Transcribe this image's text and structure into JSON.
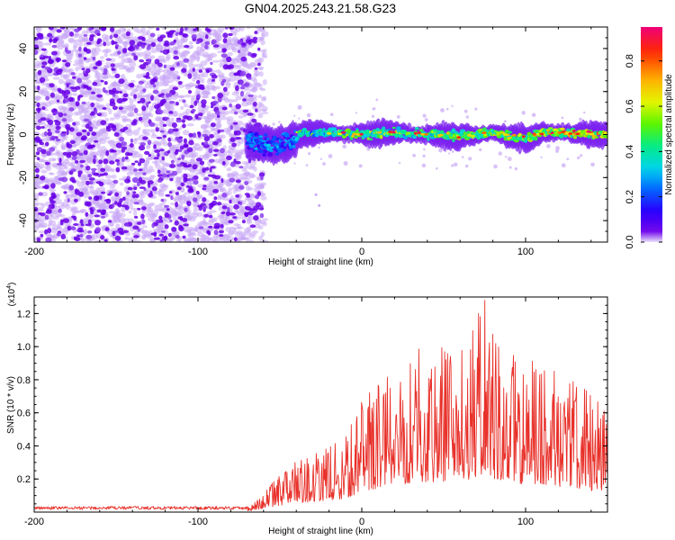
{
  "title": "GN04.2025.243.21.58.G23",
  "colors": {
    "snr_line": "#e8312a",
    "background": "#ffffff",
    "axis": "#000000",
    "scatter_core": "#6a00e8",
    "scatter_halo": "#c9a8f5"
  },
  "chart_data": [
    {
      "type": "heatmap",
      "name": "spectrogram",
      "xlabel": "Height of straight line (km)",
      "ylabel": "Frequency (Hz)",
      "xlim": [
        -200,
        150
      ],
      "ylim": [
        -50,
        50
      ],
      "xticks": [
        -200,
        -100,
        0,
        100
      ],
      "xtick_labels": [
        "-200",
        "-100",
        "0",
        "100"
      ],
      "yticks": [
        -40,
        -20,
        0,
        20,
        40
      ],
      "ytick_labels": [
        "-40",
        "-20",
        "0",
        "20",
        "40"
      ],
      "noise_region_x": [
        -200,
        -65
      ],
      "signal_onset_x": -70,
      "signal_band_center_hz": [
        [
          -70,
          -3
        ],
        [
          -55,
          -5
        ],
        [
          -45,
          -4
        ],
        [
          -35,
          1
        ],
        [
          -20,
          1
        ],
        [
          0,
          0
        ],
        [
          20,
          1
        ],
        [
          40,
          0
        ],
        [
          60,
          -1
        ],
        [
          80,
          1
        ],
        [
          90,
          -1
        ],
        [
          100,
          -2
        ],
        [
          110,
          1
        ],
        [
          120,
          1
        ],
        [
          150,
          0
        ]
      ],
      "signal_band_halfwidth_hz": 4,
      "colorbar": {
        "label": "Normalized spectral amplitude",
        "min": 0.0,
        "max": 0.95,
        "ticks": [
          0.0,
          0.2,
          0.4,
          0.6,
          0.8
        ],
        "tick_labels": [
          "0.0",
          "0.2",
          "0.4",
          "0.6",
          "0.8"
        ]
      }
    },
    {
      "type": "line",
      "name": "snr",
      "xlabel": "Height of straight line (km)",
      "ylabel": "SNR (10 * v/v)",
      "y_multiplier_label": "(x10",
      "y_multiplier_exponent": "4",
      "y_multiplier_close": ")",
      "xlim": [
        -200,
        150
      ],
      "ylim": [
        0,
        1.3
      ],
      "xticks": [
        -200,
        -100,
        0,
        100
      ],
      "xtick_labels": [
        "-200",
        "-100",
        "0",
        "100"
      ],
      "yticks": [
        0.2,
        0.4,
        0.6,
        0.8,
        1.0,
        1.2
      ],
      "ytick_labels": [
        "0.2",
        "0.4",
        "0.6",
        "0.8",
        "1.0",
        "1.2"
      ],
      "envelope": [
        [
          -200,
          0.03
        ],
        [
          -70,
          0.03
        ],
        [
          -60,
          0.12
        ],
        [
          -45,
          0.28
        ],
        [
          -30,
          0.35
        ],
        [
          -10,
          0.45
        ],
        [
          0,
          0.7
        ],
        [
          15,
          0.85
        ],
        [
          25,
          0.95
        ],
        [
          40,
          1.02
        ],
        [
          55,
          0.98
        ],
        [
          65,
          1.08
        ],
        [
          75,
          1.28
        ],
        [
          85,
          0.95
        ],
        [
          100,
          0.95
        ],
        [
          115,
          0.88
        ],
        [
          130,
          0.82
        ],
        [
          150,
          0.62
        ]
      ],
      "peak": {
        "x": 75,
        "y": 1.28
      }
    }
  ]
}
